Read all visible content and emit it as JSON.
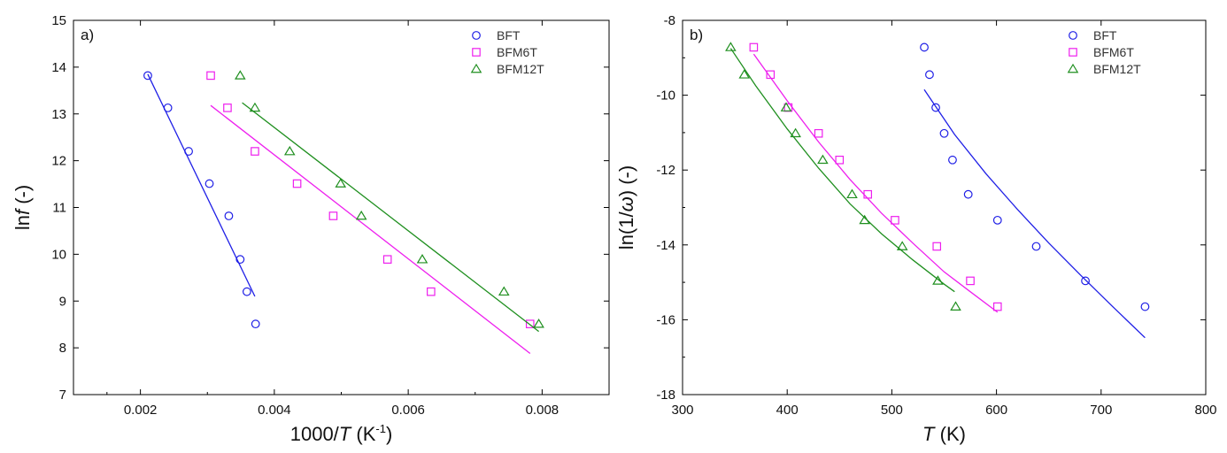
{
  "chart_data": [
    {
      "type": "scatter",
      "panel_label": "a)",
      "xlabel": {
        "pre": "1000/",
        "italic": "T",
        "post": " (K",
        "sup": "-1",
        "end": ")"
      },
      "ylabel": {
        "pre": "ln",
        "italic": "f",
        "post": " (-)"
      },
      "xlim": [
        0.001,
        0.009
      ],
      "ylim": [
        7,
        15
      ],
      "xticks": [
        0.002,
        0.004,
        0.006,
        0.008
      ],
      "xtick_labels": [
        "0.002",
        "0.004",
        "0.006",
        "0.008"
      ],
      "yticks": [
        7,
        8,
        9,
        10,
        11,
        12,
        13,
        14,
        15
      ],
      "ytick_labels": [
        "7",
        "8",
        "9",
        "10",
        "11",
        "12",
        "13",
        "14",
        "15"
      ],
      "legend_position": "top-right",
      "series": [
        {
          "name": "BFT",
          "marker": "circle",
          "color": "#1f1fe6",
          "x": [
            0.00211,
            0.00241,
            0.00272,
            0.00303,
            0.00332,
            0.00349,
            0.00359,
            0.00372
          ],
          "y": [
            13.82,
            13.13,
            12.2,
            11.51,
            10.82,
            9.89,
            9.2,
            8.51
          ],
          "fit": {
            "x": [
              0.00211,
              0.00371
            ],
            "y": [
              13.85,
              9.1
            ]
          }
        },
        {
          "name": "BFM6T",
          "marker": "square",
          "color": "#ee1fee",
          "x": [
            0.00305,
            0.0033,
            0.00371,
            0.00434,
            0.00488,
            0.00569,
            0.00634,
            0.00782
          ],
          "y": [
            13.82,
            13.13,
            12.2,
            11.51,
            10.82,
            9.89,
            9.2,
            8.51
          ],
          "fit": {
            "x": [
              0.00305,
              0.00782
            ],
            "y": [
              13.18,
              7.88
            ]
          }
        },
        {
          "name": "BFM12T",
          "marker": "triangle",
          "color": "#1f8f1f",
          "x": [
            0.00349,
            0.00371,
            0.00423,
            0.00499,
            0.0053,
            0.00621,
            0.00743,
            0.00795
          ],
          "y": [
            13.82,
            13.13,
            12.2,
            11.51,
            10.82,
            9.89,
            9.2,
            8.51
          ],
          "fit": {
            "x": [
              0.00352,
              0.00795
            ],
            "y": [
              13.24,
              8.35
            ]
          }
        }
      ]
    },
    {
      "type": "scatter",
      "panel_label": "b)",
      "xlabel": {
        "pre": "",
        "italic": "T",
        "post": " (K)",
        "sup": "",
        "end": ""
      },
      "ylabel": {
        "pre": "ln(1/",
        "italic": "ω",
        "post": ") (-)"
      },
      "xlim": [
        300,
        800
      ],
      "ylim": [
        -18,
        -8
      ],
      "xticks": [
        300,
        400,
        500,
        600,
        700,
        800
      ],
      "xtick_labels": [
        "300",
        "400",
        "500",
        "600",
        "700",
        "800"
      ],
      "yticks": [
        -18,
        -16,
        -14,
        -12,
        -10,
        -8
      ],
      "ytick_labels": [
        "-18",
        "-16",
        "-14",
        "-12",
        "-10",
        "-8"
      ],
      "legend_position": "top-right",
      "series": [
        {
          "name": "BFT",
          "marker": "circle",
          "color": "#1f1fe6",
          "x": [
            531,
            536,
            542,
            550,
            558,
            573,
            601,
            638,
            685,
            742
          ],
          "y": [
            -8.72,
            -9.45,
            -10.33,
            -11.02,
            -11.73,
            -12.65,
            -13.34,
            -14.04,
            -14.96,
            -15.65
          ],
          "fit": {
            "x": [
              531,
              560,
              590,
              620,
              650,
              680,
              710,
              742
            ],
            "y": [
              -9.85,
              -11.05,
              -12.1,
              -13.05,
              -13.95,
              -14.8,
              -15.62,
              -16.48
            ]
          }
        },
        {
          "name": "BFM6T",
          "marker": "square",
          "color": "#ee1fee",
          "x": [
            368,
            384,
            401,
            430,
            450,
            477,
            503,
            543,
            575,
            601
          ],
          "y": [
            -8.72,
            -9.45,
            -10.33,
            -11.02,
            -11.73,
            -12.65,
            -13.34,
            -14.04,
            -14.96,
            -15.65
          ],
          "fit": {
            "x": [
              368,
              400,
              430,
              460,
              490,
              520,
              550,
              575,
              601
            ],
            "y": [
              -8.9,
              -10.15,
              -11.25,
              -12.25,
              -13.15,
              -13.95,
              -14.72,
              -15.25,
              -15.8
            ]
          }
        },
        {
          "name": "BFM12T",
          "marker": "triangle",
          "color": "#1f8f1f",
          "x": [
            346,
            359,
            399,
            408,
            434,
            462,
            474,
            510,
            544,
            561
          ],
          "y": [
            -8.72,
            -9.45,
            -10.33,
            -11.02,
            -11.73,
            -12.65,
            -13.34,
            -14.04,
            -14.96,
            -15.65
          ],
          "fit": {
            "x": [
              346,
              370,
              400,
              430,
              460,
              490,
              520,
              550,
              560
            ],
            "y": [
              -8.75,
              -9.75,
              -10.9,
              -11.95,
              -12.9,
              -13.7,
              -14.4,
              -15.05,
              -15.25
            ]
          }
        }
      ]
    }
  ]
}
